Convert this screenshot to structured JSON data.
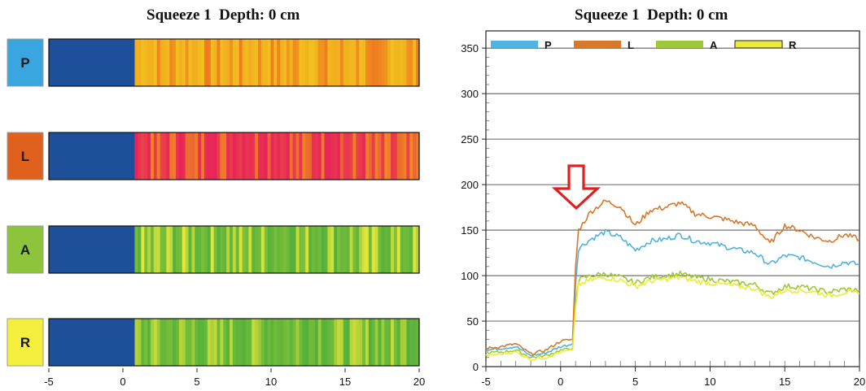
{
  "left_title": "Squeeze 1  Depth: 0 cm",
  "right_title": "Squeeze 1  Depth: 0 cm",
  "chart_data": [
    {
      "type": "heatmap",
      "title": "Squeeze 1  Depth: 0 cm",
      "rows": [
        {
          "label": "P",
          "label_color": "#3aa6e0",
          "base_color": "#1e4f9a",
          "after_color": "#f2c21e",
          "alt_color": "#f07a20"
        },
        {
          "label": "L",
          "label_color": "#e0601e",
          "base_color": "#1e4f9a",
          "after_color": "#e8245a",
          "alt_color": "#f08a20"
        },
        {
          "label": "A",
          "label_color": "#8cc43c",
          "base_color": "#1e4f9a",
          "after_color": "#54b03a",
          "alt_color": "#e8e83a"
        },
        {
          "label": "R",
          "label_color": "#f4ee3c",
          "base_color": "#1e4f9a",
          "after_color": "#54b03a",
          "alt_color": "#c8dc3a"
        }
      ],
      "x_ticks": [
        "-5",
        "0",
        "5",
        "10",
        "15",
        "20"
      ],
      "xlim": [
        -5,
        20
      ],
      "onset": 0.8
    },
    {
      "type": "line",
      "title": "Squeeze 1  Depth: 0 cm",
      "xlim": [
        -5,
        20
      ],
      "ylim": [
        0,
        360
      ],
      "x_ticks": [
        "-5",
        "0",
        "5",
        "10",
        "15",
        "20"
      ],
      "y_ticks": [
        "0",
        "50",
        "100",
        "150",
        "200",
        "250",
        "300",
        "350"
      ],
      "legend": "top",
      "grid": true,
      "annotation": "red-outline-down-arrow",
      "series": [
        {
          "name": "P",
          "color": "#4fb3e3",
          "x": [
            -5,
            -4,
            -3,
            -2,
            -1,
            0,
            0.8,
            1,
            1.2,
            2,
            3,
            4,
            5,
            6,
            7,
            8,
            9,
            10,
            11,
            12,
            13,
            14,
            15,
            16,
            17,
            18,
            19,
            20
          ],
          "y": [
            18,
            20,
            22,
            12,
            15,
            22,
            25,
            90,
            130,
            140,
            148,
            142,
            128,
            138,
            140,
            145,
            138,
            136,
            132,
            128,
            125,
            112,
            122,
            120,
            115,
            110,
            115,
            112
          ]
        },
        {
          "name": "L",
          "color": "#d8782a",
          "x": [
            -5,
            -4,
            -3,
            -2,
            -1,
            0,
            0.8,
            1,
            1.2,
            2,
            3,
            4,
            5,
            6,
            7,
            8,
            9,
            10,
            11,
            12,
            13,
            14,
            15,
            16,
            17,
            18,
            19,
            20
          ],
          "y": [
            20,
            22,
            25,
            14,
            18,
            28,
            30,
            110,
            150,
            170,
            182,
            176,
            155,
            172,
            175,
            180,
            168,
            165,
            162,
            158,
            155,
            135,
            155,
            150,
            142,
            138,
            145,
            140
          ]
        },
        {
          "name": "A",
          "color": "#9cc83a",
          "x": [
            -5,
            -4,
            -3,
            -2,
            -1,
            0,
            0.8,
            1,
            1.2,
            2,
            3,
            4,
            5,
            6,
            7,
            8,
            9,
            10,
            11,
            12,
            13,
            14,
            15,
            16,
            17,
            18,
            19,
            20
          ],
          "y": [
            15,
            16,
            18,
            10,
            12,
            18,
            20,
            70,
            95,
            100,
            102,
            98,
            92,
            98,
            100,
            102,
            98,
            96,
            94,
            92,
            90,
            80,
            88,
            88,
            85,
            82,
            85,
            84
          ]
        },
        {
          "name": "R",
          "color": "#eeea3a",
          "x": [
            -5,
            -4,
            -3,
            -2,
            -1,
            0,
            0.8,
            1,
            1.2,
            2,
            3,
            4,
            5,
            6,
            7,
            8,
            9,
            10,
            11,
            12,
            13,
            14,
            15,
            16,
            17,
            18,
            19,
            20
          ],
          "y": [
            12,
            14,
            16,
            8,
            10,
            16,
            18,
            65,
            90,
            95,
            98,
            95,
            88,
            94,
            96,
            98,
            94,
            92,
            90,
            88,
            86,
            76,
            84,
            84,
            82,
            78,
            82,
            80
          ]
        }
      ]
    }
  ]
}
